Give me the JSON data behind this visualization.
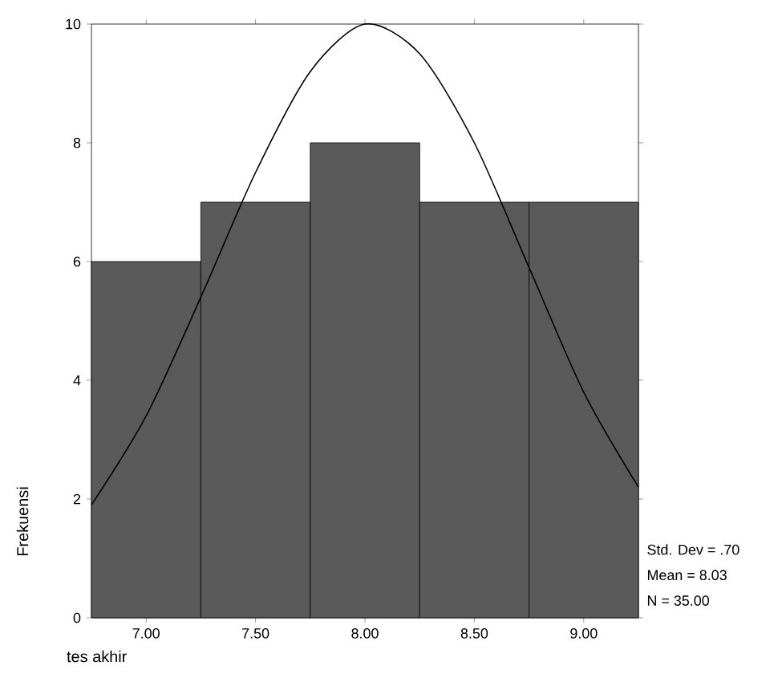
{
  "chart_data": {
    "type": "histogram",
    "xlabel": "tes akhir",
    "ylabel": "Frekuensi",
    "bins": [
      6.75,
      7.25,
      7.75,
      8.25,
      8.75,
      9.25
    ],
    "values": [
      6,
      7,
      8,
      7,
      7
    ],
    "color": "#5a5a5a",
    "series": [
      {
        "type": "line",
        "color": "#000000",
        "x": [
          6.75,
          7.0,
          7.25,
          7.5,
          7.75,
          8.0,
          8.25,
          8.5,
          8.75,
          9.0,
          9.25
        ],
        "values": [
          1.9,
          3.4,
          5.4,
          7.5,
          9.2,
          10.0,
          9.5,
          8.0,
          5.9,
          3.8,
          2.2
        ]
      }
    ],
    "xlim": [
      6.75,
      9.25
    ],
    "ylim": [
      0,
      10
    ],
    "xticks": [
      {
        "value": 7,
        "label": "7.00"
      },
      {
        "value": 7.5,
        "label": "7.50"
      },
      {
        "value": 8,
        "label": "8.00"
      },
      {
        "value": 8.5,
        "label": "8.50"
      },
      {
        "value": 9,
        "label": "9.00"
      }
    ],
    "yticks": [
      0,
      2,
      4,
      6,
      8,
      10
    ],
    "annotations": [
      "Std. Dev = .70",
      "Mean = 8.03",
      "N = 35.00"
    ]
  }
}
